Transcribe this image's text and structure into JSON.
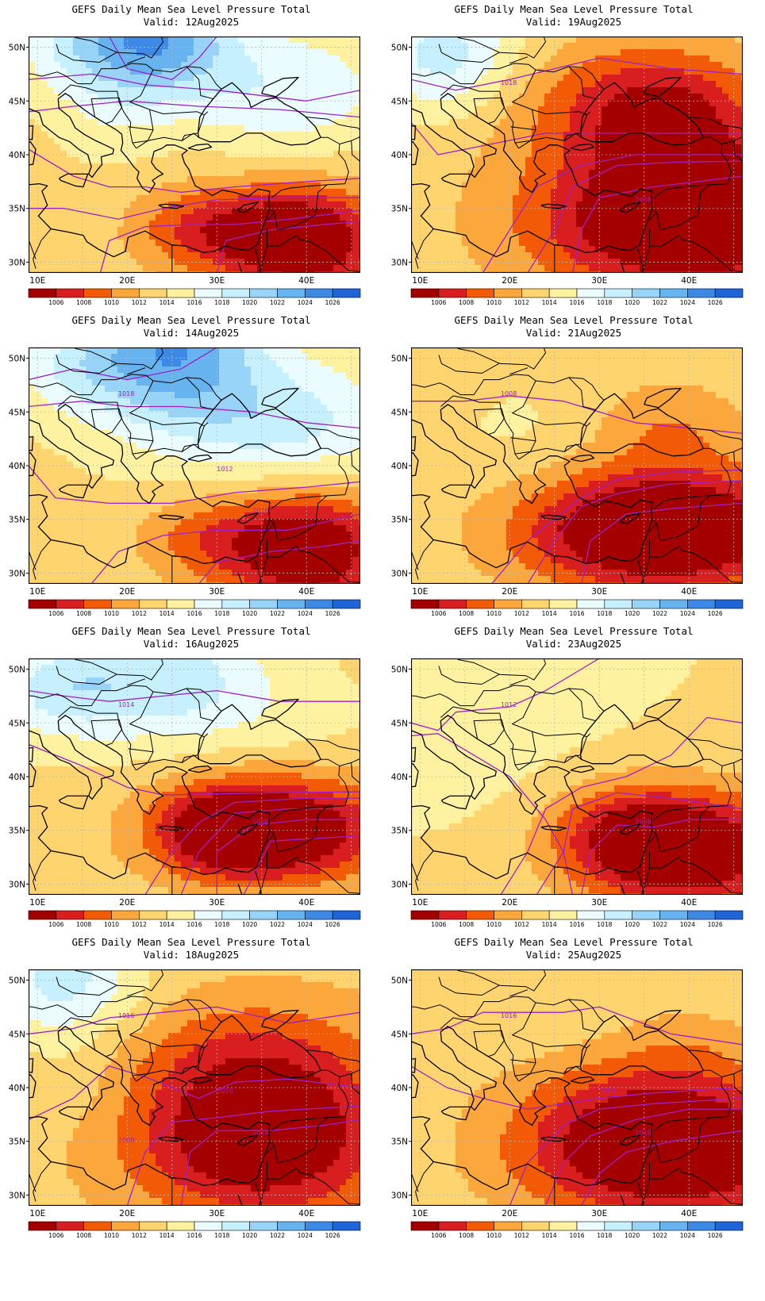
{
  "panels": [
    {
      "title": "GEFS Daily Mean Sea Level Pressure Total",
      "valid": "Valid: 12Aug2025",
      "scenario": 0,
      "contour_labels": []
    },
    {
      "title": "GEFS Daily Mean Sea Level Pressure Total",
      "valid": "Valid: 19Aug2025",
      "scenario": 4,
      "contour_labels": [
        "1018",
        "1008"
      ]
    },
    {
      "title": "GEFS Daily Mean Sea Level Pressure Total",
      "valid": "Valid: 14Aug2025",
      "scenario": 1,
      "contour_labels": [
        "1018",
        "1016",
        "1012"
      ]
    },
    {
      "title": "GEFS Daily Mean Sea Level Pressure Total",
      "valid": "Valid: 21Aug2025",
      "scenario": 5,
      "contour_labels": [
        "1008"
      ]
    },
    {
      "title": "GEFS Daily Mean Sea Level Pressure Total",
      "valid": "Valid: 16Aug2025",
      "scenario": 2,
      "contour_labels": [
        "1014",
        "1008"
      ]
    },
    {
      "title": "GEFS Daily Mean Sea Level Pressure Total",
      "valid": "Valid: 23Aug2025",
      "scenario": 6,
      "contour_labels": [
        "1012",
        "1008"
      ]
    },
    {
      "title": "GEFS Daily Mean Sea Level Pressure Total",
      "valid": "Valid: 18Aug2025",
      "scenario": 3,
      "contour_labels": [
        "1016",
        "1014",
        "1010",
        "1008"
      ]
    },
    {
      "title": "GEFS Daily Mean Sea Level Pressure Total",
      "valid": "Valid: 25Aug2025",
      "scenario": 7,
      "contour_labels": [
        "1016",
        "1010",
        "1008"
      ]
    }
  ],
  "axes": {
    "lon_ticks": [
      "10E",
      "20E",
      "30E",
      "40E"
    ],
    "lat_ticks": [
      "50N",
      "45N",
      "40N",
      "35N",
      "30N"
    ]
  },
  "colorbar": {
    "labels": [
      "1006",
      "1008",
      "1010",
      "1012",
      "1014",
      "1016",
      "1018",
      "1020",
      "1022",
      "1024",
      "1026"
    ],
    "colors": [
      "#a50000",
      "#d81e1e",
      "#f25a05",
      "#fba73b",
      "#fed46e",
      "#fef2a0",
      "#eafcff",
      "#c7f0fe",
      "#98d3f8",
      "#66b3f0",
      "#3d8ae6",
      "#1f64d9"
    ]
  },
  "style": {
    "contour_color": "#a020c8",
    "coast_color": "#000000",
    "grid_color": "#b8b8b8"
  }
}
